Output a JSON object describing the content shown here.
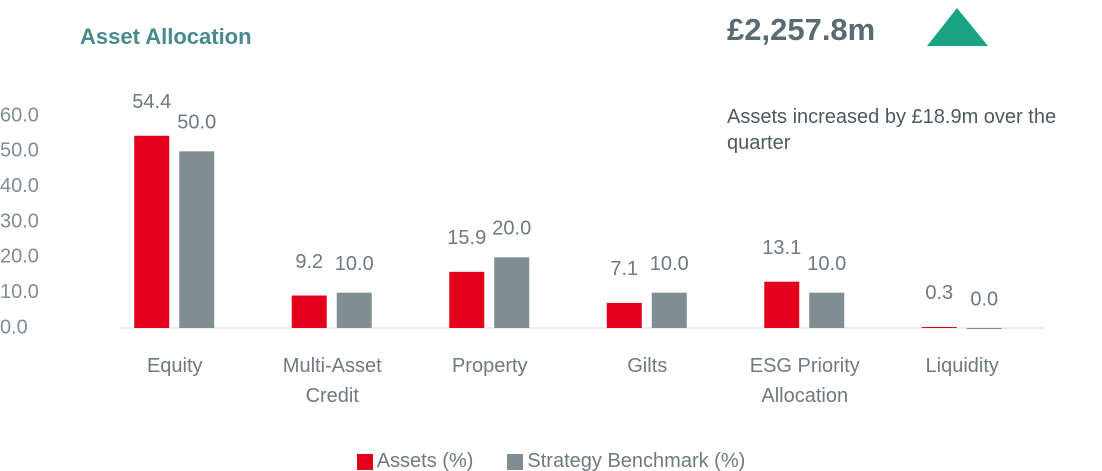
{
  "title": "Asset Allocation",
  "headline": "£2,257.8m",
  "note": "Assets increased by £18.9m over the quarter",
  "chart_data": {
    "type": "bar",
    "categories": [
      "Equity",
      "Multi-Asset Credit",
      "Property",
      "Gilts",
      "ESG Priority Allocation",
      "Liquidity"
    ],
    "series": [
      {
        "name": "Assets (%)",
        "color": "#e3001b",
        "values": [
          54.4,
          9.2,
          15.9,
          7.1,
          13.1,
          0.3
        ],
        "value_labels": [
          "54.4",
          "9.2",
          "15.9",
          "7.1",
          "13.1",
          "0.3"
        ]
      },
      {
        "name": "Strategy Benchmark (%)",
        "color": "#808e94",
        "values": [
          50.0,
          10.0,
          20.0,
          10.0,
          10.0,
          0.0
        ],
        "value_labels": [
          "50.0",
          "10.0",
          "20.0",
          "10.0",
          "10.0",
          "0.0"
        ]
      }
    ],
    "ylim": [
      0,
      60
    ],
    "yticks": [
      {
        "value": 0,
        "label": "0.0"
      },
      {
        "value": 10,
        "label": "10.0"
      },
      {
        "value": 20,
        "label": "20.0"
      },
      {
        "value": 30,
        "label": "30.0"
      },
      {
        "value": 40,
        "label": "40.0"
      },
      {
        "value": 50,
        "label": "50.0"
      },
      {
        "value": 60,
        "label": "60.0"
      }
    ],
    "grid": false
  }
}
